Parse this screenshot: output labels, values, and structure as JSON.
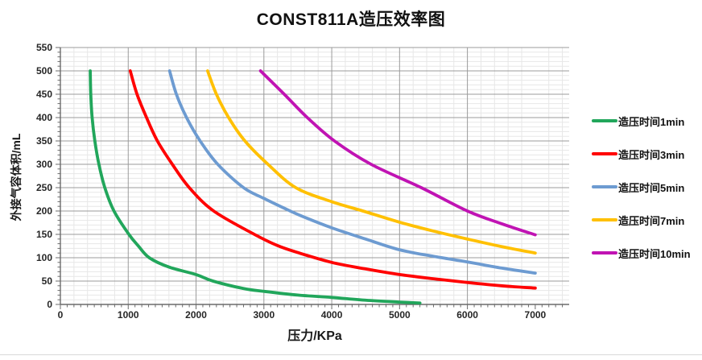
{
  "title": "CONST811A造压效率图",
  "colors": {
    "grid_minor": "#E7E7E7",
    "grid_major": "#9B9B9B",
    "axis_line": "#6B6B6B",
    "tick_text": "#262626"
  },
  "axes": {
    "x": {
      "label": "压力/KPa",
      "min": 0,
      "max": 7500,
      "major_grid": 1000,
      "minor_grid": 200,
      "minor_tick": 100,
      "tick_labels": [
        "0",
        "1000",
        "2000",
        "3000",
        "4000",
        "5000",
        "6000",
        "7000"
      ]
    },
    "y": {
      "label": "外接气容体积/mL",
      "min": 0,
      "max": 550,
      "major_grid": 50,
      "minor_grid": 10,
      "minor_tick": 10,
      "tick_labels": [
        "0",
        "50",
        "100",
        "150",
        "200",
        "250",
        "300",
        "350",
        "400",
        "450",
        "500",
        "550"
      ]
    }
  },
  "legend": {
    "position": "right",
    "items": [
      {
        "label": "造压时间1min",
        "color": "#21A65B"
      },
      {
        "label": "造压时间3min",
        "color": "#FF0000"
      },
      {
        "label": "造压时间5min",
        "color": "#6D9BD1"
      },
      {
        "label": "造压时间7min",
        "color": "#FFC000"
      },
      {
        "label": "造压时间10min",
        "color": "#C013B3"
      }
    ]
  },
  "chart_data": {
    "type": "line",
    "title": "CONST811A造压效率图",
    "xlabel": "压力/KPa",
    "ylabel": "外接气容体积/mL",
    "xlim": [
      0,
      7500
    ],
    "ylim": [
      0,
      550
    ],
    "grid": "major+minor",
    "legend_position": "right",
    "series": [
      {
        "name": "造压时间1min",
        "color": "#21A65B",
        "points": [
          [
            440,
            500
          ],
          [
            448,
            450
          ],
          [
            468,
            400
          ],
          [
            508,
            350
          ],
          [
            568,
            300
          ],
          [
            655,
            250
          ],
          [
            790,
            200
          ],
          [
            1010,
            150
          ],
          [
            1150,
            125
          ],
          [
            1310,
            100
          ],
          [
            1600,
            80
          ],
          [
            2000,
            64
          ],
          [
            2250,
            50
          ],
          [
            2700,
            34
          ],
          [
            3000,
            28
          ],
          [
            3500,
            20
          ],
          [
            4000,
            15
          ],
          [
            4500,
            9
          ],
          [
            5000,
            5
          ],
          [
            5300,
            3
          ]
        ]
      },
      {
        "name": "造压时间3min",
        "color": "#FF0000",
        "points": [
          [
            1030,
            500
          ],
          [
            1130,
            450
          ],
          [
            1270,
            400
          ],
          [
            1430,
            350
          ],
          [
            1650,
            300
          ],
          [
            1900,
            250
          ],
          [
            2260,
            200
          ],
          [
            2860,
            150
          ],
          [
            3200,
            126
          ],
          [
            3500,
            111
          ],
          [
            4000,
            90
          ],
          [
            4500,
            76
          ],
          [
            5000,
            64
          ],
          [
            5500,
            55
          ],
          [
            6000,
            47
          ],
          [
            6500,
            40
          ],
          [
            7000,
            35
          ]
        ]
      },
      {
        "name": "造压时间5min",
        "color": "#6D9BD1",
        "points": [
          [
            1610,
            500
          ],
          [
            1710,
            450
          ],
          [
            1860,
            400
          ],
          [
            2060,
            350
          ],
          [
            2320,
            300
          ],
          [
            2700,
            250
          ],
          [
            3000,
            227
          ],
          [
            3300,
            206
          ],
          [
            3560,
            189
          ],
          [
            4000,
            164
          ],
          [
            4500,
            140
          ],
          [
            5000,
            117
          ],
          [
            5500,
            103
          ],
          [
            6000,
            91
          ],
          [
            6500,
            78
          ],
          [
            7000,
            67
          ]
        ]
      },
      {
        "name": "造压时间7min",
        "color": "#FFC000",
        "points": [
          [
            2170,
            500
          ],
          [
            2300,
            450
          ],
          [
            2480,
            400
          ],
          [
            2720,
            350
          ],
          [
            3060,
            300
          ],
          [
            3470,
            250
          ],
          [
            4000,
            220
          ],
          [
            4460,
            200
          ],
          [
            5000,
            176
          ],
          [
            5500,
            157
          ],
          [
            6000,
            140
          ],
          [
            6500,
            124
          ],
          [
            7000,
            110
          ]
        ]
      },
      {
        "name": "造压时间10min",
        "color": "#C013B3",
        "points": [
          [
            2950,
            500
          ],
          [
            3300,
            450
          ],
          [
            3640,
            400
          ],
          [
            4040,
            350
          ],
          [
            4580,
            300
          ],
          [
            5320,
            250
          ],
          [
            6000,
            200
          ],
          [
            6500,
            173
          ],
          [
            7000,
            149
          ]
        ]
      }
    ]
  }
}
